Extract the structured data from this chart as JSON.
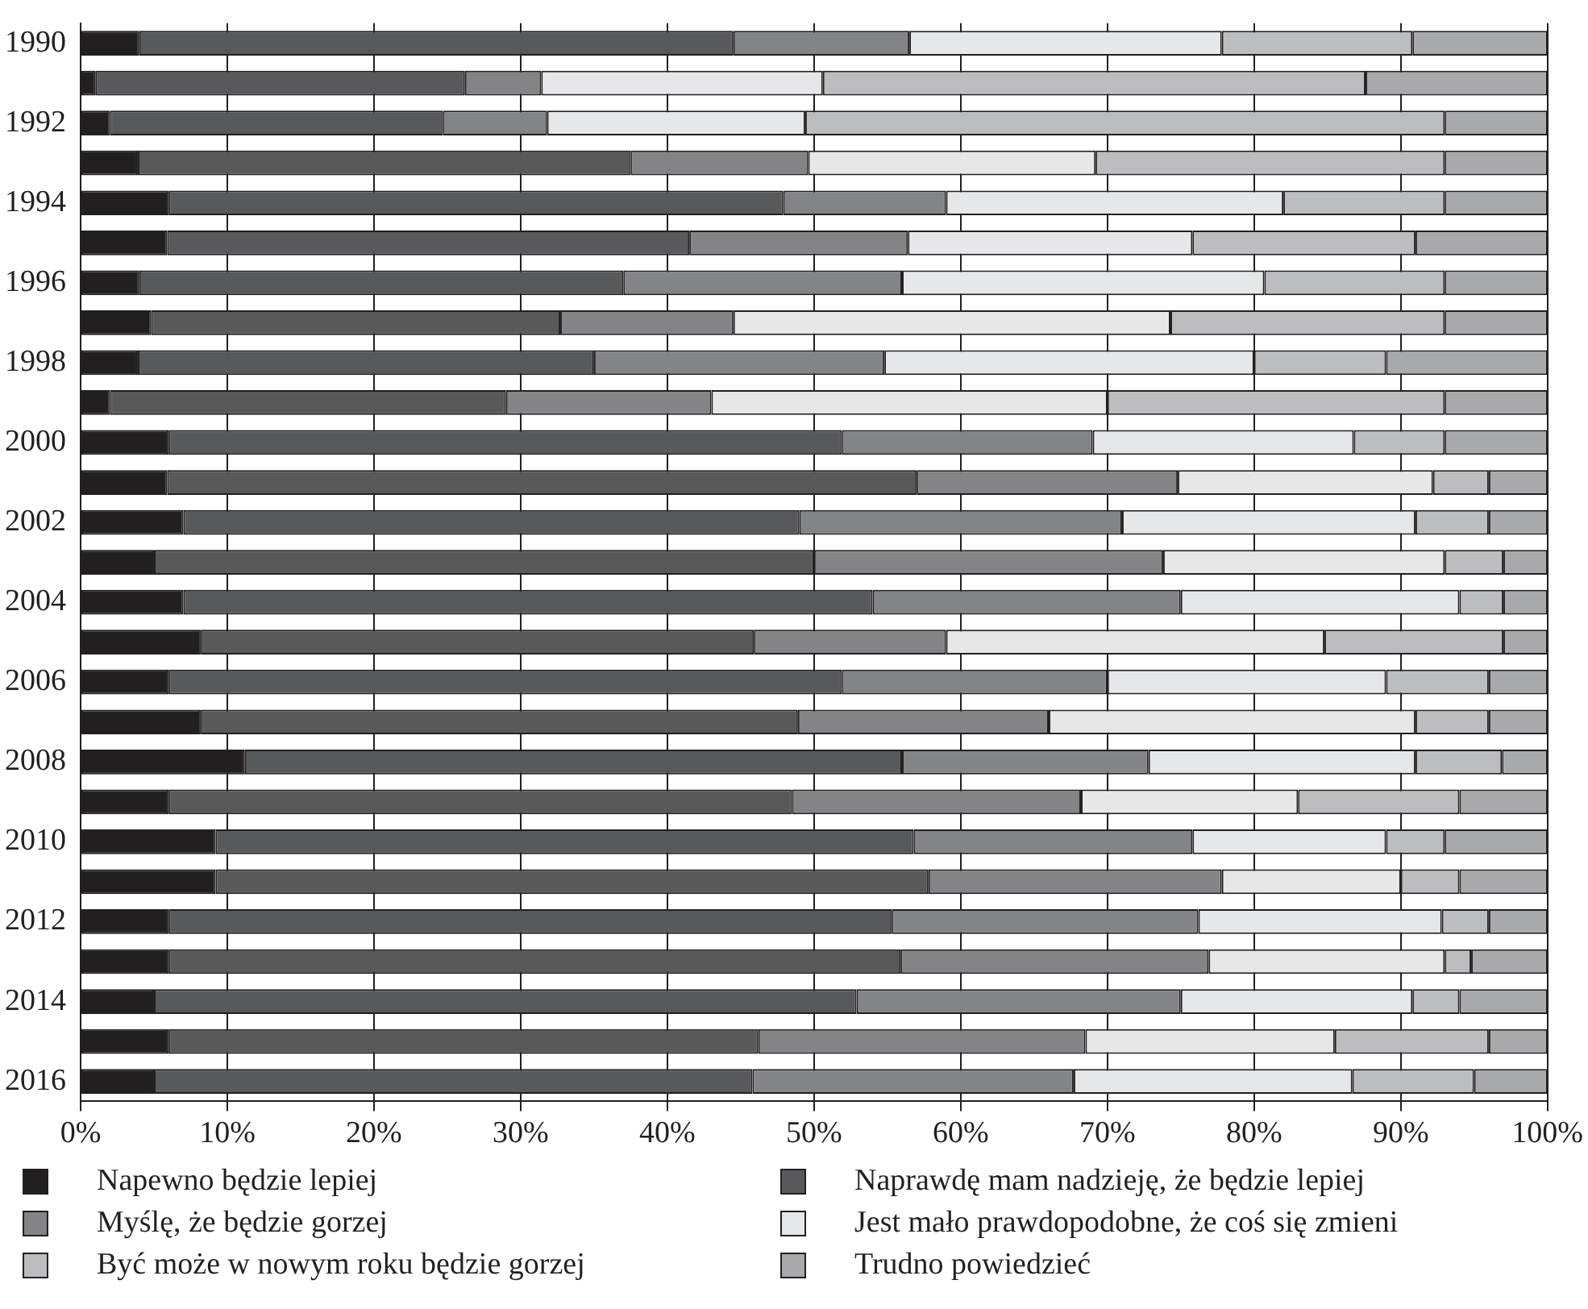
{
  "chart_data": {
    "type": "bar",
    "orientation": "horizontal",
    "stacked": true,
    "categories": [
      "1990",
      null,
      "1992",
      null,
      "1994",
      null,
      "1996",
      null,
      "1998",
      null,
      "2000",
      null,
      "2002",
      null,
      "2004",
      null,
      "2006",
      null,
      "2008",
      null,
      "2010",
      null,
      "2012",
      null,
      "2014",
      null,
      "2016"
    ],
    "series": [
      {
        "name": "Napewno będzie lepiej",
        "color": "#231f20",
        "values": [
          4,
          1,
          2,
          3.9,
          6,
          5.9,
          4,
          4.8,
          3.9,
          2,
          6,
          5.9,
          7,
          5,
          7,
          8.2,
          6,
          8.2,
          11.2,
          6,
          9.2,
          9.2,
          6,
          6,
          5,
          6,
          5
        ]
      },
      {
        "name": "Naprawdę mam nadzieję, że będzie lepiej",
        "color": "#58595b",
        "values": [
          40.5,
          25.2,
          22.7,
          33.6,
          41.9,
          35.6,
          33,
          27.9,
          31.1,
          27,
          45.9,
          51.1,
          42,
          45,
          47,
          37.7,
          45.9,
          40.7,
          44.8,
          42.5,
          47.6,
          48.6,
          49.3,
          49.9,
          47.9,
          40.2,
          40.8
        ]
      },
      {
        "name": "Myślę, że będzie gorzej",
        "color": "#838487",
        "values": [
          12,
          5.2,
          7.1,
          12.1,
          11.1,
          14.9,
          19,
          11.8,
          19.8,
          14,
          17.1,
          17.8,
          22,
          23.8,
          21,
          13.1,
          18.1,
          17.1,
          16.8,
          19.7,
          19,
          20,
          20.9,
          21,
          22.1,
          22.3,
          21.9
        ]
      },
      {
        "name": "Jest mało prawdopodobne, że coś się zmieni",
        "color": "#e6e7e8",
        "values": [
          21.3,
          19.2,
          17.6,
          19.6,
          23,
          19.4,
          24.7,
          29.8,
          25.2,
          27,
          17.8,
          17.4,
          20,
          19.2,
          19,
          25.8,
          19,
          25,
          18.2,
          14.8,
          13.2,
          12.2,
          16.6,
          16.1,
          15.8,
          17,
          19
        ]
      },
      {
        "name": "Być może w nowym roku będzie gorzej",
        "color": "#bcbdc0",
        "values": [
          13,
          37,
          43.6,
          23.8,
          11,
          15.2,
          12.3,
          18.7,
          9,
          23,
          6.2,
          3.8,
          5,
          4,
          3,
          12.2,
          7,
          5,
          5.9,
          11,
          4,
          4,
          3.2,
          1.8,
          3.2,
          10.5,
          8.3
        ]
      },
      {
        "name": "Trudno powiedzieć",
        "color": "#a7a9ac",
        "values": [
          9.2,
          12.4,
          7,
          7,
          7,
          9,
          7,
          7,
          11,
          7,
          7,
          4,
          4,
          3,
          3,
          3,
          4,
          4,
          3.1,
          6,
          7,
          6,
          4,
          5.2,
          6,
          4,
          5
        ]
      }
    ],
    "xlim": [
      0,
      100
    ],
    "xticks": [
      {
        "value": 0,
        "label": "0%"
      },
      {
        "value": 10,
        "label": "10%"
      },
      {
        "value": 20,
        "label": "20%"
      },
      {
        "value": 30,
        "label": "30%"
      },
      {
        "value": 40,
        "label": "40%"
      },
      {
        "value": 50,
        "label": "50%"
      },
      {
        "value": 60,
        "label": "60%"
      },
      {
        "value": 70,
        "label": "70%"
      },
      {
        "value": 80,
        "label": "80%"
      },
      {
        "value": 90,
        "label": "90%"
      },
      {
        "value": 100,
        "label": "100%"
      }
    ],
    "grid": "x",
    "legend": "bottom"
  }
}
